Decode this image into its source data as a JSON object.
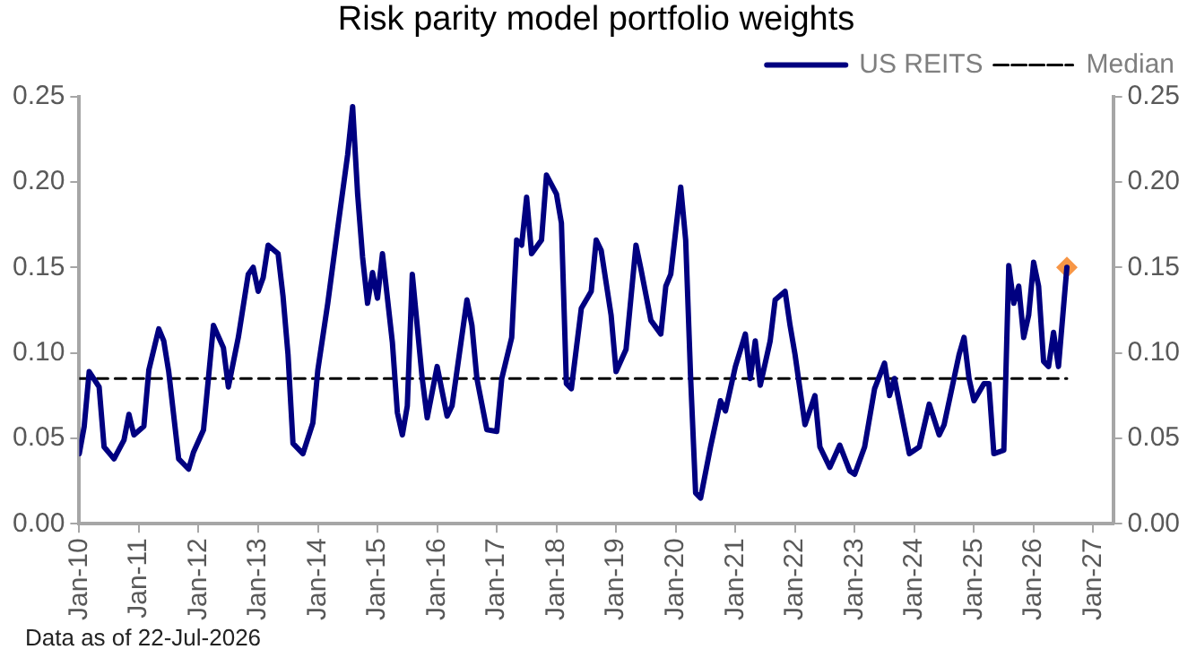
{
  "chart_data": {
    "type": "line",
    "title": "Risk parity model portfolio weights",
    "xlim": [
      "2010-01",
      "2027-05"
    ],
    "xticks": [
      {
        "value": "2010-01",
        "label": "Jan-10"
      },
      {
        "value": "2011-01",
        "label": "Jan-11"
      },
      {
        "value": "2012-01",
        "label": "Jan-12"
      },
      {
        "value": "2013-01",
        "label": "Jan-13"
      },
      {
        "value": "2014-01",
        "label": "Jan-14"
      },
      {
        "value": "2015-01",
        "label": "Jan-15"
      },
      {
        "value": "2016-01",
        "label": "Jan-16"
      },
      {
        "value": "2017-01",
        "label": "Jan-17"
      },
      {
        "value": "2018-01",
        "label": "Jan-18"
      },
      {
        "value": "2019-01",
        "label": "Jan-19"
      },
      {
        "value": "2020-01",
        "label": "Jan-20"
      },
      {
        "value": "2021-01",
        "label": "Jan-21"
      },
      {
        "value": "2022-01",
        "label": "Jan-22"
      },
      {
        "value": "2023-01",
        "label": "Jan-23"
      },
      {
        "value": "2024-01",
        "label": "Jan-24"
      },
      {
        "value": "2025-01",
        "label": "Jan-25"
      },
      {
        "value": "2026-01",
        "label": "Jan-26"
      },
      {
        "value": "2027-01",
        "label": "Jan-27"
      }
    ],
    "ylim": [
      0,
      0.25
    ],
    "yticks": [
      {
        "value": 0,
        "label": "0.00"
      },
      {
        "value": 0.05,
        "label": "0.05"
      },
      {
        "value": 0.1,
        "label": "0.10"
      },
      {
        "value": 0.15,
        "label": "0.15"
      },
      {
        "value": 0.2,
        "label": "0.20"
      },
      {
        "value": 0.25,
        "label": "0.25"
      }
    ],
    "y2lim": [
      0,
      0.25
    ],
    "y2ticks": [
      {
        "value": 0,
        "label": "0.00"
      },
      {
        "value": 0.05,
        "label": "0.05"
      },
      {
        "value": 0.1,
        "label": "0.10"
      },
      {
        "value": 0.15,
        "label": "0.15"
      },
      {
        "value": 0.2,
        "label": "0.20"
      },
      {
        "value": 0.25,
        "label": "0.25"
      }
    ],
    "legend": "top right",
    "annotations": [
      "Data as of 22-Jul-2026"
    ],
    "series": [
      {
        "name": "US REITS",
        "type": "line",
        "color": "#000080",
        "marker": "none",
        "line_style": "solid",
        "x": [
          "2010-01",
          "2010-02",
          "2010-03",
          "2010-05",
          "2010-06",
          "2010-08",
          "2010-10",
          "2010-11",
          "2010-12",
          "2011-02",
          "2011-03",
          "2011-05",
          "2011-06",
          "2011-07",
          "2011-09",
          "2011-11",
          "2011-12",
          "2012-02",
          "2012-04",
          "2012-06",
          "2012-07",
          "2012-09",
          "2012-11",
          "2012-12",
          "2013-01",
          "2013-02",
          "2013-03",
          "2013-05",
          "2013-06",
          "2013-07",
          "2013-08",
          "2013-10",
          "2013-12",
          "2014-01",
          "2014-03",
          "2014-05",
          "2014-07",
          "2014-08",
          "2014-09",
          "2014-10",
          "2014-11",
          "2014-12",
          "2015-01",
          "2015-02",
          "2015-04",
          "2015-05",
          "2015-06",
          "2015-07",
          "2015-08",
          "2015-10",
          "2015-11",
          "2016-01",
          "2016-03",
          "2016-04",
          "2016-07",
          "2016-08",
          "2016-09",
          "2016-11",
          "2017-01",
          "2017-02",
          "2017-04",
          "2017-05",
          "2017-06",
          "2017-07",
          "2017-08",
          "2017-10",
          "2017-11",
          "2018-01",
          "2018-02",
          "2018-03",
          "2018-04",
          "2018-06",
          "2018-08",
          "2018-09",
          "2018-10",
          "2018-12",
          "2019-01",
          "2019-03",
          "2019-05",
          "2019-06",
          "2019-08",
          "2019-10",
          "2019-11",
          "2019-12",
          "2020-02",
          "2020-03",
          "2020-04",
          "2020-05",
          "2020-06",
          "2020-08",
          "2020-10",
          "2020-11",
          "2021-01",
          "2021-03",
          "2021-04",
          "2021-05",
          "2021-06",
          "2021-08",
          "2021-09",
          "2021-11",
          "2021-12",
          "2022-01",
          "2022-03",
          "2022-05",
          "2022-06",
          "2022-08",
          "2022-10",
          "2022-12",
          "2023-01",
          "2023-03",
          "2023-05",
          "2023-07",
          "2023-08",
          "2023-09",
          "2023-12",
          "2024-02",
          "2024-04",
          "2024-06",
          "2024-07",
          "2024-10",
          "2024-11",
          "2024-12",
          "2025-01",
          "2025-03",
          "2025-04",
          "2025-05",
          "2025-07",
          "2025-08",
          "2025-09",
          "2025-10",
          "2025-11",
          "2025-12",
          "2026-01",
          "2026-02",
          "2026-03",
          "2026-04",
          "2026-05",
          "2026-06",
          "2026-07-22"
        ],
        "values": [
          0.041,
          0.057,
          0.089,
          0.08,
          0.045,
          0.038,
          0.049,
          0.064,
          0.052,
          0.057,
          0.09,
          0.114,
          0.107,
          0.089,
          0.038,
          0.032,
          0.042,
          0.055,
          0.116,
          0.103,
          0.08,
          0.109,
          0.146,
          0.15,
          0.136,
          0.144,
          0.163,
          0.158,
          0.133,
          0.099,
          0.047,
          0.041,
          0.059,
          0.09,
          0.129,
          0.173,
          0.216,
          0.244,
          0.193,
          0.156,
          0.129,
          0.147,
          0.132,
          0.158,
          0.106,
          0.065,
          0.052,
          0.069,
          0.146,
          0.085,
          0.062,
          0.092,
          0.063,
          0.069,
          0.131,
          0.116,
          0.085,
          0.055,
          0.054,
          0.085,
          0.109,
          0.166,
          0.163,
          0.191,
          0.158,
          0.166,
          0.204,
          0.193,
          0.176,
          0.082,
          0.079,
          0.126,
          0.136,
          0.166,
          0.16,
          0.122,
          0.089,
          0.102,
          0.163,
          0.149,
          0.119,
          0.111,
          0.139,
          0.146,
          0.197,
          0.166,
          0.085,
          0.018,
          0.015,
          0.045,
          0.072,
          0.066,
          0.092,
          0.111,
          0.085,
          0.107,
          0.081,
          0.107,
          0.131,
          0.136,
          0.116,
          0.099,
          0.058,
          0.075,
          0.045,
          0.033,
          0.046,
          0.031,
          0.029,
          0.045,
          0.079,
          0.094,
          0.075,
          0.085,
          0.041,
          0.045,
          0.07,
          0.052,
          0.058,
          0.099,
          0.109,
          0.085,
          0.072,
          0.082,
          0.082,
          0.041,
          0.043,
          0.151,
          0.129,
          0.139,
          0.109,
          0.122,
          0.153,
          0.139,
          0.095,
          0.092,
          0.112,
          0.092,
          0.15
        ]
      },
      {
        "name": "Median",
        "type": "line",
        "color": "#000000",
        "marker": "none",
        "line_style": "dashed",
        "x": [
          "2010-01",
          "2026-07-22"
        ],
        "values": [
          0.085,
          0.085
        ]
      },
      {
        "type": "scatter",
        "color": "#f79646",
        "marker": "diamond",
        "x": [
          "2026-07-22"
        ],
        "values": [
          0.15
        ]
      }
    ]
  }
}
